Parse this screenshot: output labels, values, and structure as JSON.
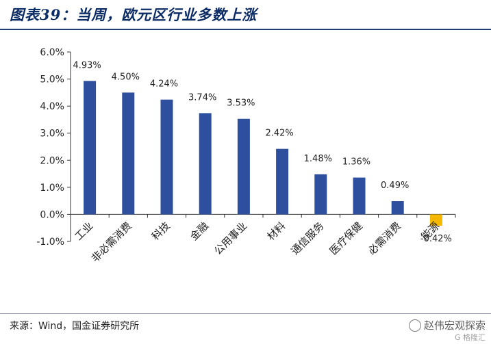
{
  "title": "图表39：当周，欧元区行业多数上涨",
  "source": "来源：Wind，国金证券研究所",
  "watermark": {
    "text": "赵伟宏观探索",
    "sub": "G 格隆汇"
  },
  "colors": {
    "positive": "#2e4e9e",
    "negative": "#f5b800",
    "axis": "#333333",
    "title": "#0c2c66"
  },
  "chart_data": {
    "type": "bar",
    "categories": [
      "工业",
      "非必需消费",
      "科技",
      "金融",
      "公用事业",
      "材料",
      "通信服务",
      "医疗保健",
      "必需消费",
      "能源"
    ],
    "values": [
      4.93,
      4.5,
      4.24,
      3.74,
      3.53,
      2.42,
      1.48,
      1.36,
      0.49,
      -0.42
    ],
    "data_labels": [
      "4.93%",
      "4.50%",
      "4.24%",
      "3.74%",
      "3.53%",
      "2.42%",
      "1.48%",
      "1.36%",
      "0.49%",
      "-0.42%"
    ],
    "y_ticks": [
      "6.0%",
      "5.0%",
      "4.0%",
      "3.0%",
      "2.0%",
      "1.0%",
      "0.0%",
      "-1.0%"
    ],
    "ylim": [
      -1.0,
      6.0
    ],
    "grid": false,
    "legend": "none"
  }
}
